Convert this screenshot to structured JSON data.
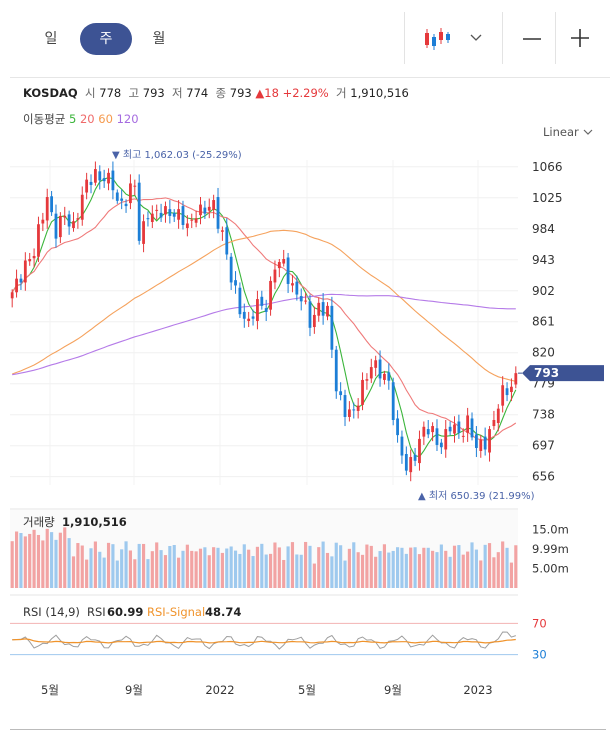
{
  "tabs": [
    {
      "label": "일",
      "active": false
    },
    {
      "label": "주",
      "active": true
    },
    {
      "label": "월",
      "active": false
    }
  ],
  "icons": {
    "chart_type": "candlestick-chart-icon",
    "dropdown": "chevron-down-icon",
    "zoom_out": "minus-icon",
    "zoom_in": "plus-icon"
  },
  "legend": {
    "name": "KOSDAQ",
    "open_label": "시",
    "open": "778",
    "high_label": "고",
    "high": "793",
    "low_label": "저",
    "low": "774",
    "close_label": "종",
    "close": "793",
    "change": "18",
    "change_pct": "+2.29%",
    "volume_label": "거",
    "volume": "1,910,516"
  },
  "moving_average": {
    "label": "이동평균",
    "periods": [
      "5",
      "20",
      "60",
      "120"
    ]
  },
  "scale_mode": "Linear",
  "colors": {
    "up": "#e5383b",
    "down": "#1c7ed6",
    "ma5": "#3bb53b",
    "ma20": "#ef7a7a",
    "ma60": "#f5a25d",
    "ma120": "#b57be8",
    "accent": "#3d5394",
    "rsi": "#9e9e9e",
    "signal": "#f0932b",
    "volbar": "#9ec9ee"
  },
  "chart_data": {
    "type": "candlestick",
    "x_ticks": [
      "5월",
      "9월",
      "2022",
      "5월",
      "9월",
      "2023"
    ],
    "price_ticks": [
      1066,
      1025,
      984,
      943,
      902,
      861,
      820,
      779,
      738,
      697,
      656
    ],
    "y_range": [
      645,
      1075
    ],
    "last_price": "793",
    "high_marker": {
      "label": "최고",
      "value": "1,062.03",
      "pct": "(-25.29%)"
    },
    "low_marker": {
      "label": "최저",
      "value": "650.39",
      "pct": "(21.99%)"
    },
    "anchors_close": [
      [
        0,
        895
      ],
      [
        3,
        940
      ],
      [
        5,
        950
      ],
      [
        8,
        1030
      ],
      [
        10,
        978
      ],
      [
        12,
        1000
      ],
      [
        14,
        990
      ],
      [
        17,
        1040
      ],
      [
        19,
        1060
      ],
      [
        21,
        1050
      ],
      [
        23,
        1040
      ],
      [
        24,
        1020
      ],
      [
        26,
        1025
      ],
      [
        28,
        1040
      ],
      [
        29,
        970
      ],
      [
        31,
        1010
      ],
      [
        32,
        1000
      ],
      [
        34,
        1003
      ],
      [
        36,
        1010
      ],
      [
        38,
        1000
      ],
      [
        40,
        985
      ],
      [
        42,
        1010
      ],
      [
        44,
        1005
      ],
      [
        46,
        1015
      ],
      [
        48,
        980
      ],
      [
        50,
        915
      ],
      [
        52,
        880
      ],
      [
        54,
        860
      ],
      [
        56,
        880
      ],
      [
        58,
        885
      ],
      [
        60,
        935
      ],
      [
        62,
        935
      ],
      [
        64,
        910
      ],
      [
        66,
        890
      ],
      [
        68,
        860
      ],
      [
        70,
        885
      ],
      [
        72,
        870
      ],
      [
        74,
        775
      ],
      [
        76,
        745
      ],
      [
        78,
        735
      ],
      [
        80,
        780
      ],
      [
        82,
        805
      ],
      [
        84,
        790
      ],
      [
        85,
        790
      ],
      [
        86,
        785
      ],
      [
        88,
        700
      ],
      [
        90,
        665
      ],
      [
        92,
        690
      ],
      [
        94,
        715
      ],
      [
        96,
        715
      ],
      [
        98,
        700
      ],
      [
        100,
        720
      ],
      [
        102,
        715
      ],
      [
        104,
        730
      ],
      [
        106,
        690
      ],
      [
        108,
        705
      ],
      [
        110,
        730
      ],
      [
        112,
        765
      ],
      [
        114,
        780
      ],
      [
        115,
        793
      ]
    ],
    "volume": {
      "label": "거래량",
      "value": "1,910,516",
      "ticks": [
        "15.0m",
        "9.99m",
        "5.00m"
      ],
      "range": [
        0,
        20
      ]
    },
    "rsi": {
      "label": "RSI (14,9)",
      "rsi_label": "RSI",
      "rsi_value": "60.99",
      "signal_label": "RSI-Signal",
      "signal_value": "48.74",
      "levels": [
        "70",
        "30"
      ],
      "range": [
        0,
        100
      ]
    }
  }
}
